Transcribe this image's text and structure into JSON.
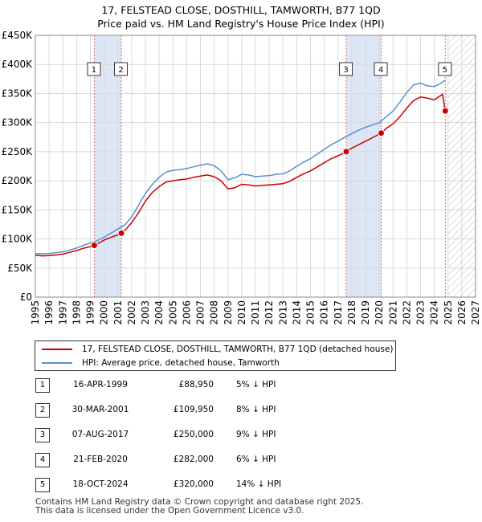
{
  "title_line1": "17, FELSTEAD CLOSE, DOSTHILL, TAMWORTH, B77 1QD",
  "title_line2": "Price paid vs. HM Land Registry's House Price Index (HPI)",
  "colors": {
    "property_line": "#cc0000",
    "hpi_line": "#5b8fd1",
    "shade": "#dde6f5",
    "vline": "#d96b6b",
    "grid": "#d9d9d9"
  },
  "chart_data": {
    "type": "line",
    "x_range": [
      1995,
      2027
    ],
    "ylim": [
      0,
      450000
    ],
    "x_ticks": [
      "1995",
      "1996",
      "1997",
      "1998",
      "1999",
      "2000",
      "2001",
      "2002",
      "2003",
      "2004",
      "2005",
      "2006",
      "2007",
      "2008",
      "2009",
      "2010",
      "2011",
      "2012",
      "2013",
      "2014",
      "2015",
      "2016",
      "2017",
      "2018",
      "2019",
      "2020",
      "2021",
      "2022",
      "2023",
      "2024",
      "2025",
      "2026",
      "2027"
    ],
    "y_ticks": [
      {
        "value": 0,
        "label": "£0"
      },
      {
        "value": 50000,
        "label": "£50K"
      },
      {
        "value": 100000,
        "label": "£100K"
      },
      {
        "value": 150000,
        "label": "£150K"
      },
      {
        "value": 200000,
        "label": "£200K"
      },
      {
        "value": 250000,
        "label": "£250K"
      },
      {
        "value": 300000,
        "label": "£300K"
      },
      {
        "value": 350000,
        "label": "£350K"
      },
      {
        "value": 400000,
        "label": "£400K"
      },
      {
        "value": 450000,
        "label": "£450K"
      }
    ],
    "hatch_from": 2025.0,
    "shaded_ranges": [
      [
        1999.29,
        2001.25
      ],
      [
        2017.6,
        2020.14
      ]
    ],
    "series": [
      {
        "name": "17, FELSTEAD CLOSE, DOSTHILL, TAMWORTH, B77 1QD (detached house)",
        "color": "#cc0000",
        "points": [
          [
            1995.0,
            72000
          ],
          [
            1995.5,
            71000
          ],
          [
            1996.0,
            71500
          ],
          [
            1996.5,
            72500
          ],
          [
            1997.0,
            74000
          ],
          [
            1997.5,
            77000
          ],
          [
            1998.0,
            80000
          ],
          [
            1998.5,
            84000
          ],
          [
            1999.0,
            87000
          ],
          [
            1999.29,
            88950
          ],
          [
            1999.7,
            94000
          ],
          [
            2000.0,
            98000
          ],
          [
            2000.5,
            103000
          ],
          [
            2001.0,
            107000
          ],
          [
            2001.25,
            109950
          ],
          [
            2001.6,
            117000
          ],
          [
            2002.0,
            128000
          ],
          [
            2002.5,
            145000
          ],
          [
            2003.0,
            165000
          ],
          [
            2003.5,
            180000
          ],
          [
            2004.0,
            190000
          ],
          [
            2004.5,
            198000
          ],
          [
            2005.0,
            200000
          ],
          [
            2005.5,
            202000
          ],
          [
            2006.0,
            203000
          ],
          [
            2006.5,
            206000
          ],
          [
            2007.0,
            208000
          ],
          [
            2007.5,
            210000
          ],
          [
            2008.0,
            207000
          ],
          [
            2008.5,
            200000
          ],
          [
            2009.0,
            186000
          ],
          [
            2009.5,
            188000
          ],
          [
            2010.0,
            194000
          ],
          [
            2010.5,
            193000
          ],
          [
            2011.0,
            191000
          ],
          [
            2011.5,
            192000
          ],
          [
            2012.0,
            193000
          ],
          [
            2012.5,
            194000
          ],
          [
            2013.0,
            195000
          ],
          [
            2013.5,
            199000
          ],
          [
            2014.0,
            206000
          ],
          [
            2014.5,
            212000
          ],
          [
            2015.0,
            217000
          ],
          [
            2015.5,
            224000
          ],
          [
            2016.0,
            231000
          ],
          [
            2016.5,
            238000
          ],
          [
            2017.0,
            243000
          ],
          [
            2017.6,
            250000
          ],
          [
            2018.0,
            256000
          ],
          [
            2018.5,
            262000
          ],
          [
            2019.0,
            268000
          ],
          [
            2019.5,
            274000
          ],
          [
            2020.14,
            282000
          ],
          [
            2020.5,
            290000
          ],
          [
            2021.0,
            298000
          ],
          [
            2021.5,
            310000
          ],
          [
            2022.0,
            325000
          ],
          [
            2022.5,
            338000
          ],
          [
            2023.0,
            344000
          ],
          [
            2023.5,
            342000
          ],
          [
            2024.0,
            339000
          ],
          [
            2024.3,
            344000
          ],
          [
            2024.6,
            349000
          ],
          [
            2024.75,
            326000
          ],
          [
            2024.8,
            320000
          ]
        ]
      },
      {
        "name": "HPI: Average price, detached house, Tamworth",
        "color": "#5b8fd1",
        "points": [
          [
            1995.0,
            75000
          ],
          [
            1995.5,
            74500
          ],
          [
            1996.0,
            75000
          ],
          [
            1996.5,
            76500
          ],
          [
            1997.0,
            78000
          ],
          [
            1997.5,
            81000
          ],
          [
            1998.0,
            84500
          ],
          [
            1998.5,
            89000
          ],
          [
            1999.0,
            93000
          ],
          [
            1999.5,
            97000
          ],
          [
            2000.0,
            103000
          ],
          [
            2000.5,
            110000
          ],
          [
            2001.0,
            117000
          ],
          [
            2001.5,
            124000
          ],
          [
            2002.0,
            138000
          ],
          [
            2002.5,
            158000
          ],
          [
            2003.0,
            178000
          ],
          [
            2003.5,
            194000
          ],
          [
            2004.0,
            206000
          ],
          [
            2004.5,
            215000
          ],
          [
            2005.0,
            218000
          ],
          [
            2005.5,
            219000
          ],
          [
            2006.0,
            221000
          ],
          [
            2006.5,
            224000
          ],
          [
            2007.0,
            227000
          ],
          [
            2007.5,
            229000
          ],
          [
            2008.0,
            226000
          ],
          [
            2008.5,
            217000
          ],
          [
            2009.0,
            202000
          ],
          [
            2009.5,
            205000
          ],
          [
            2010.0,
            211000
          ],
          [
            2010.5,
            210000
          ],
          [
            2011.0,
            207000
          ],
          [
            2011.5,
            208000
          ],
          [
            2012.0,
            209000
          ],
          [
            2012.5,
            211000
          ],
          [
            2013.0,
            212000
          ],
          [
            2013.5,
            217000
          ],
          [
            2014.0,
            225000
          ],
          [
            2014.5,
            232000
          ],
          [
            2015.0,
            238000
          ],
          [
            2015.5,
            246000
          ],
          [
            2016.0,
            254000
          ],
          [
            2016.5,
            262000
          ],
          [
            2017.0,
            268000
          ],
          [
            2017.5,
            275000
          ],
          [
            2018.0,
            281000
          ],
          [
            2018.5,
            287000
          ],
          [
            2019.0,
            292000
          ],
          [
            2019.5,
            296000
          ],
          [
            2020.0,
            300000
          ],
          [
            2020.5,
            310000
          ],
          [
            2021.0,
            320000
          ],
          [
            2021.5,
            335000
          ],
          [
            2022.0,
            352000
          ],
          [
            2022.5,
            365000
          ],
          [
            2023.0,
            368000
          ],
          [
            2023.5,
            363000
          ],
          [
            2024.0,
            362000
          ],
          [
            2024.5,
            368000
          ],
          [
            2024.8,
            373000
          ]
        ]
      }
    ],
    "sales": [
      {
        "num": "1",
        "x": 1999.29,
        "price": 88950
      },
      {
        "num": "2",
        "x": 2001.25,
        "price": 109950
      },
      {
        "num": "3",
        "x": 2017.6,
        "price": 250000
      },
      {
        "num": "4",
        "x": 2020.14,
        "price": 282000
      },
      {
        "num": "5",
        "x": 2024.8,
        "price": 320000
      }
    ]
  },
  "legend": {
    "property": "17, FELSTEAD CLOSE, DOSTHILL, TAMWORTH, B77 1QD (detached house)",
    "hpi": "HPI: Average price, detached house, Tamworth"
  },
  "transactions": [
    {
      "num": "1",
      "date": "16-APR-1999",
      "price": "£88,950",
      "hpi": "5% ↓ HPI"
    },
    {
      "num": "2",
      "date": "30-MAR-2001",
      "price": "£109,950",
      "hpi": "8% ↓ HPI"
    },
    {
      "num": "3",
      "date": "07-AUG-2017",
      "price": "£250,000",
      "hpi": "9% ↓ HPI"
    },
    {
      "num": "4",
      "date": "21-FEB-2020",
      "price": "£282,000",
      "hpi": "6% ↓ HPI"
    },
    {
      "num": "5",
      "date": "18-OCT-2024",
      "price": "£320,000",
      "hpi": "14% ↓ HPI"
    }
  ],
  "footer_line1": "Contains HM Land Registry data © Crown copyright and database right 2025.",
  "footer_line2": "This data is licensed under the Open Government Licence v3.0."
}
